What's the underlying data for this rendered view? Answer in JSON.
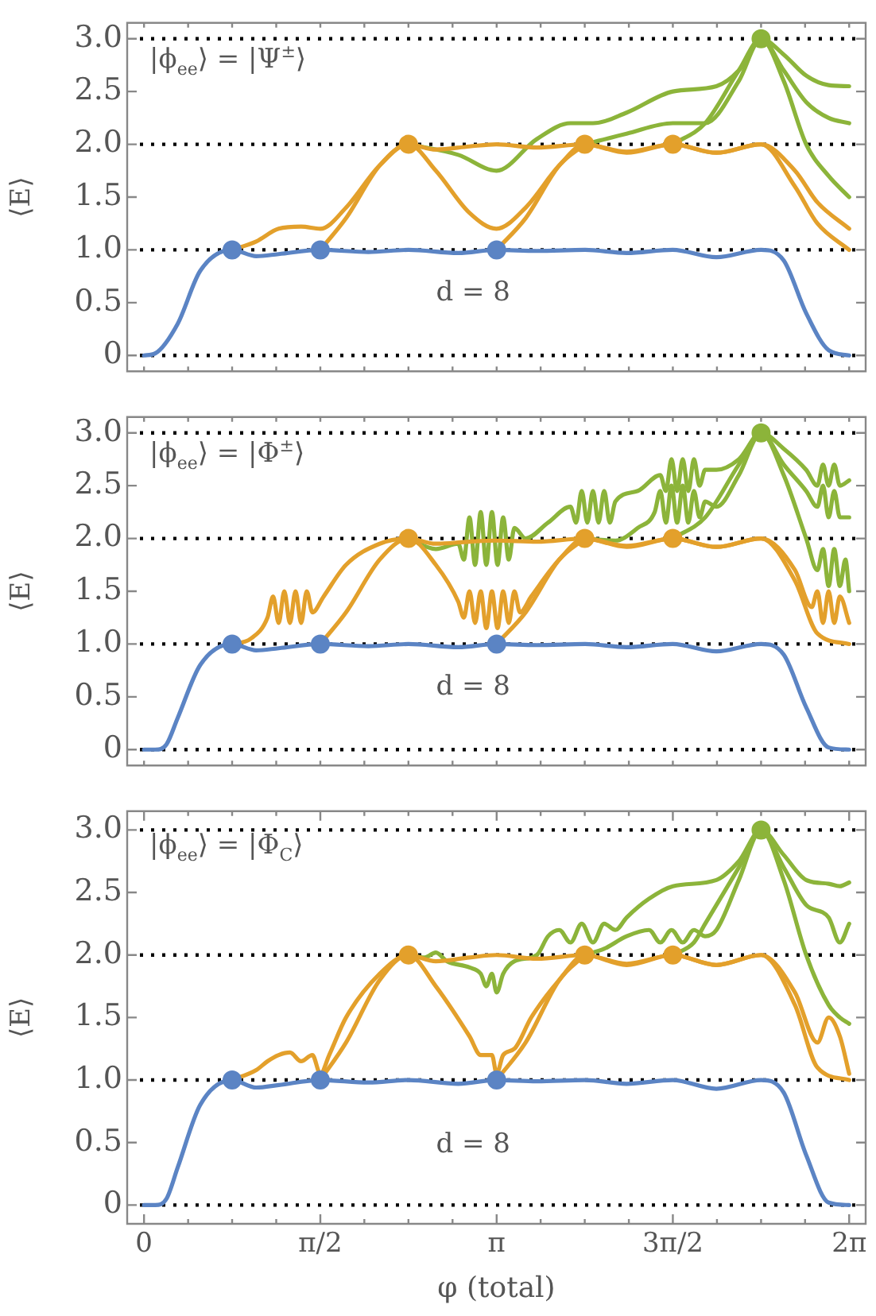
{
  "chart_data": [
    {
      "type": "line",
      "ylabel": "⟨E⟩",
      "annotations": [
        "|ϕ$_{ee}$⟩ = |Ψ$^{±}$⟩",
        "d = 8"
      ],
      "marker": "none",
      "grid": false,
      "legend": false,
      "tick_labels": "y",
      "xlim": [
        -0.15,
        6.43
      ],
      "ylim": [
        -0.15,
        3.15
      ],
      "xticks": [
        {
          "value": 0,
          "label": null
        },
        {
          "value": 0.393,
          "label": null
        },
        {
          "value": 0.785,
          "label": null
        },
        {
          "value": 1.178,
          "label": null
        },
        {
          "value": 1.571,
          "label": null
        },
        {
          "value": 1.963,
          "label": null
        },
        {
          "value": 2.356,
          "label": null
        },
        {
          "value": 2.749,
          "label": null
        },
        {
          "value": 3.142,
          "label": null
        },
        {
          "value": 3.534,
          "label": null
        },
        {
          "value": 3.927,
          "label": null
        },
        {
          "value": 4.32,
          "label": null
        },
        {
          "value": 4.712,
          "label": null
        },
        {
          "value": 5.105,
          "label": null
        },
        {
          "value": 5.498,
          "label": null
        },
        {
          "value": 5.89,
          "label": null
        },
        {
          "value": 6.283,
          "label": null
        }
      ],
      "yticks": [
        0,
        0.5,
        {
          "value": 1,
          "label": "1.0"
        },
        1.5,
        {
          "value": 2,
          "label": "2.0"
        },
        2.5,
        {
          "value": 3,
          "label": "3.0"
        }
      ],
      "ref_lines": [
        {
          "axis": "y",
          "value": 0,
          "color": "#000000",
          "line_style": "dotted"
        },
        {
          "axis": "y",
          "value": 1,
          "color": "#000000",
          "line_style": "dotted"
        },
        {
          "axis": "y",
          "value": 2,
          "color": "#000000",
          "line_style": "dotted"
        },
        {
          "axis": "y",
          "value": 3,
          "color": "#000000",
          "line_style": "dotted"
        }
      ],
      "series": [
        {
          "color": "#5b84c4",
          "x": [
            0,
            0.1,
            0.3,
            0.5,
            0.785,
            1.0,
            1.2,
            1.571,
            2.0,
            2.356,
            2.8,
            3.14,
            3.5,
            3.93,
            4.3,
            4.71,
            5.1,
            5.498,
            5.7,
            5.9,
            6.1,
            6.283
          ],
          "values": [
            0,
            0.02,
            0.3,
            0.8,
            1,
            0.94,
            0.96,
            1,
            0.98,
            1,
            0.97,
            1,
            0.99,
            1,
            0.97,
            1,
            0.93,
            1,
            0.9,
            0.4,
            0.05,
            0
          ]
        },
        {
          "color": "#e3a02b",
          "x": [
            0.785,
            1.0,
            1.2,
            1.4,
            1.571,
            1.8,
            2.1,
            2.356,
            2.6,
            2.9,
            3.14,
            3.5,
            3.927,
            4.3,
            4.712,
            5.1,
            5.498,
            5.8,
            6.0,
            6.283
          ],
          "values": [
            1,
            1.08,
            1.2,
            1.22,
            1.2,
            1.4,
            1.8,
            2,
            1.95,
            1.98,
            2,
            1.97,
            2,
            1.93,
            2,
            1.92,
            2,
            1.75,
            1.45,
            1.2
          ]
        },
        {
          "color": "#e3a02b",
          "x": [
            1.571,
            1.8,
            2.1,
            2.356,
            2.6,
            2.9,
            3.14,
            3.4,
            3.7,
            3.927,
            4.3,
            4.712,
            5.1,
            5.498,
            5.8,
            6.0,
            6.283
          ],
          "values": [
            1,
            1.3,
            1.8,
            2,
            1.75,
            1.35,
            1.2,
            1.4,
            1.8,
            2,
            1.92,
            2,
            1.92,
            2,
            1.6,
            1.25,
            1.0
          ]
        },
        {
          "color": "#e3a02b",
          "x": [
            3.14,
            3.4,
            3.7,
            3.927
          ],
          "values": [
            1,
            1.3,
            1.8,
            2
          ]
        },
        {
          "color": "#8cb43a",
          "x": [
            2.356,
            2.8,
            3.14,
            3.5,
            3.8,
            4.0,
            4.3,
            4.712,
            5.1,
            5.3,
            5.498,
            5.7,
            5.9,
            6.1,
            6.283
          ],
          "values": [
            2,
            1.9,
            1.75,
            2.05,
            2.2,
            2.2,
            2.3,
            2.5,
            2.55,
            2.7,
            3,
            2.85,
            2.65,
            2.56,
            2.55
          ]
        },
        {
          "color": "#8cb43a",
          "x": [
            3.927,
            4.3,
            4.712,
            5.0,
            5.3,
            5.498,
            5.7,
            5.9,
            6.1,
            6.283
          ],
          "values": [
            2,
            2.1,
            2.2,
            2.2,
            2.6,
            3,
            2.7,
            2.4,
            2.25,
            2.2
          ]
        },
        {
          "color": "#8cb43a",
          "x": [
            4.712,
            5.0,
            5.3,
            5.498,
            5.7,
            5.9,
            6.1,
            6.283
          ],
          "values": [
            2,
            2.2,
            2.7,
            3,
            2.6,
            2.0,
            1.7,
            1.5
          ]
        },
        {
          "type": "scatter",
          "marker": "circle",
          "color": "#5b84c4",
          "x": [
            0.785,
            1.571,
            3.142
          ],
          "values": [
            1,
            1,
            1
          ]
        },
        {
          "type": "scatter",
          "marker": "circle",
          "color": "#e3a02b",
          "x": [
            2.356,
            3.927,
            4.712
          ],
          "values": [
            2,
            2,
            2
          ]
        },
        {
          "type": "scatter",
          "marker": "circle",
          "color": "#8cb43a",
          "x": [
            5.498
          ],
          "values": [
            3
          ]
        }
      ]
    },
    {
      "type": "line",
      "ylabel": "⟨E⟩",
      "annotations": [
        "|ϕ$_{ee}$⟩ = |Φ$^{±}$⟩",
        "d = 8"
      ],
      "marker": "none",
      "grid": false,
      "legend": false,
      "tick_labels": "y",
      "xlim": [
        -0.15,
        6.43
      ],
      "ylim": [
        -0.15,
        3.15
      ],
      "xticks": [
        {
          "value": 0,
          "label": null
        },
        {
          "value": 0.393,
          "label": null
        },
        {
          "value": 0.785,
          "label": null
        },
        {
          "value": 1.178,
          "label": null
        },
        {
          "value": 1.571,
          "label": null
        },
        {
          "value": 1.963,
          "label": null
        },
        {
          "value": 2.356,
          "label": null
        },
        {
          "value": 2.749,
          "label": null
        },
        {
          "value": 3.142,
          "label": null
        },
        {
          "value": 3.534,
          "label": null
        },
        {
          "value": 3.927,
          "label": null
        },
        {
          "value": 4.32,
          "label": null
        },
        {
          "value": 4.712,
          "label": null
        },
        {
          "value": 5.105,
          "label": null
        },
        {
          "value": 5.498,
          "label": null
        },
        {
          "value": 5.89,
          "label": null
        },
        {
          "value": 6.283,
          "label": null
        }
      ],
      "yticks": [
        0,
        0.5,
        {
          "value": 1,
          "label": "1.0"
        },
        1.5,
        {
          "value": 2,
          "label": "2.0"
        },
        2.5,
        {
          "value": 3,
          "label": "3.0"
        }
      ],
      "ref_lines": [
        {
          "axis": "y",
          "value": 0,
          "color": "#000000",
          "line_style": "dotted"
        },
        {
          "axis": "y",
          "value": 1,
          "color": "#000000",
          "line_style": "dotted"
        },
        {
          "axis": "y",
          "value": 2,
          "color": "#000000",
          "line_style": "dotted"
        },
        {
          "axis": "y",
          "value": 3,
          "color": "#000000",
          "line_style": "dotted"
        }
      ],
      "series": [
        {
          "color": "#5b84c4",
          "x": [
            0,
            0.1,
            0.2,
            0.3,
            0.5,
            0.785,
            1.0,
            1.2,
            1.571,
            2.0,
            2.356,
            2.8,
            3.14,
            3.5,
            3.93,
            4.3,
            4.71,
            5.1,
            5.498,
            5.7,
            5.9,
            6.1,
            6.283
          ],
          "values": [
            0,
            0,
            0.05,
            0.3,
            0.8,
            1,
            0.94,
            0.96,
            1,
            0.98,
            1,
            0.97,
            1,
            0.99,
            1,
            0.97,
            1,
            0.93,
            1,
            0.9,
            0.4,
            0.02,
            0
          ]
        },
        {
          "color": "#e3a02b",
          "x": [
            0.785,
            0.95,
            1.1,
            1.15,
            1.2,
            1.25,
            1.3,
            1.35,
            1.4,
            1.45,
            1.5,
            1.6,
            1.8,
            2.1,
            2.356,
            2.6,
            2.9,
            3.14,
            3.5,
            3.927,
            4.3,
            4.712,
            5.1,
            5.498,
            5.8,
            5.95,
            6.0,
            6.05,
            6.1,
            6.15,
            6.2,
            6.283
          ],
          "values": [
            1,
            1.05,
            1.25,
            1.45,
            1.2,
            1.5,
            1.2,
            1.5,
            1.2,
            1.5,
            1.3,
            1.45,
            1.75,
            1.95,
            2,
            1.95,
            1.97,
            1.98,
            1.97,
            2,
            1.93,
            2,
            1.92,
            2,
            1.7,
            1.35,
            1.5,
            1.2,
            1.5,
            1.2,
            1.45,
            1.2
          ]
        },
        {
          "color": "#e3a02b",
          "x": [
            1.571,
            1.8,
            2.1,
            2.356,
            2.6,
            2.8,
            2.85,
            2.9,
            2.95,
            3.0,
            3.05,
            3.1,
            3.15,
            3.2,
            3.25,
            3.3,
            3.35,
            3.45,
            3.7,
            3.927,
            4.3,
            4.712,
            5.1,
            5.498,
            5.8,
            6.0,
            6.283
          ],
          "values": [
            1,
            1.3,
            1.8,
            2,
            1.75,
            1.4,
            1.25,
            1.5,
            1.2,
            1.5,
            1.15,
            1.5,
            1.15,
            1.5,
            1.2,
            1.5,
            1.3,
            1.45,
            1.8,
            2,
            1.92,
            2,
            1.92,
            2,
            1.6,
            1.1,
            1.0
          ]
        },
        {
          "color": "#e3a02b",
          "x": [
            3.14,
            3.4,
            3.7,
            3.927
          ],
          "values": [
            1,
            1.3,
            1.8,
            2
          ]
        },
        {
          "color": "#8cb43a",
          "x": [
            2.356,
            2.6,
            2.8,
            2.85,
            2.9,
            2.95,
            3.0,
            3.05,
            3.1,
            3.15,
            3.2,
            3.25,
            3.3,
            3.4,
            3.6,
            3.8,
            3.85,
            3.9,
            3.95,
            4.0,
            4.05,
            4.1,
            4.15,
            4.2,
            4.4,
            4.6,
            4.65,
            4.7,
            4.75,
            4.8,
            4.85,
            4.9,
            4.95,
            5.0,
            5.1,
            5.3,
            5.498,
            5.7,
            5.9,
            6.0,
            6.05,
            6.1,
            6.15,
            6.2,
            6.283
          ],
          "values": [
            2,
            1.9,
            1.95,
            1.8,
            2.2,
            1.75,
            2.25,
            1.75,
            2.25,
            1.75,
            2.2,
            1.8,
            2.1,
            2.0,
            2.15,
            2.3,
            2.15,
            2.45,
            2.15,
            2.45,
            2.15,
            2.45,
            2.15,
            2.35,
            2.45,
            2.6,
            2.45,
            2.75,
            2.45,
            2.75,
            2.45,
            2.75,
            2.5,
            2.65,
            2.65,
            2.75,
            3,
            2.85,
            2.65,
            2.5,
            2.7,
            2.5,
            2.7,
            2.5,
            2.55
          ]
        },
        {
          "color": "#8cb43a",
          "x": [
            3.927,
            4.2,
            4.4,
            4.55,
            4.6,
            4.65,
            4.7,
            4.75,
            4.8,
            4.85,
            4.9,
            4.95,
            5.0,
            5.1,
            5.3,
            5.498,
            5.7,
            5.9,
            6.0,
            6.05,
            6.1,
            6.15,
            6.2,
            6.283
          ],
          "values": [
            2,
            1.98,
            2.1,
            2.25,
            2.45,
            2.15,
            2.5,
            2.15,
            2.5,
            2.15,
            2.45,
            2.2,
            2.35,
            2.3,
            2.6,
            3,
            2.7,
            2.45,
            2.3,
            2.5,
            2.2,
            2.45,
            2.2,
            2.2
          ]
        },
        {
          "color": "#8cb43a",
          "x": [
            4.712,
            5.0,
            5.3,
            5.498,
            5.7,
            5.9,
            6.0,
            6.05,
            6.1,
            6.15,
            6.2,
            6.25,
            6.283
          ],
          "values": [
            2,
            2.2,
            2.7,
            3,
            2.6,
            2.0,
            1.7,
            1.9,
            1.55,
            1.9,
            1.55,
            1.8,
            1.5
          ]
        },
        {
          "type": "scatter",
          "marker": "circle",
          "color": "#5b84c4",
          "x": [
            0.785,
            1.571,
            3.142
          ],
          "values": [
            1,
            1,
            1
          ]
        },
        {
          "type": "scatter",
          "marker": "circle",
          "color": "#e3a02b",
          "x": [
            2.356,
            3.927,
            4.712
          ],
          "values": [
            2,
            2,
            2
          ]
        },
        {
          "type": "scatter",
          "marker": "circle",
          "color": "#8cb43a",
          "x": [
            5.498
          ],
          "values": [
            3
          ]
        }
      ]
    },
    {
      "type": "line",
      "ylabel": "⟨E⟩",
      "xlabel": "φ (total)",
      "annotations": [
        "|ϕ$_{ee}$⟩ = |Φ$_{C}$⟩",
        "d = 8"
      ],
      "marker": "none",
      "grid": false,
      "legend": false,
      "xlim": [
        -0.15,
        6.43
      ],
      "ylim": [
        -0.15,
        3.15
      ],
      "xticks": [
        {
          "value": 0,
          "label": "0"
        },
        {
          "value": 0.393,
          "label": null
        },
        {
          "value": 0.785,
          "label": null
        },
        {
          "value": 1.178,
          "label": null
        },
        {
          "value": 1.571,
          "label": "π/2"
        },
        {
          "value": 1.963,
          "label": null
        },
        {
          "value": 2.356,
          "label": null
        },
        {
          "value": 2.749,
          "label": null
        },
        {
          "value": 3.142,
          "label": "π"
        },
        {
          "value": 3.534,
          "label": null
        },
        {
          "value": 3.927,
          "label": null
        },
        {
          "value": 4.32,
          "label": null
        },
        {
          "value": 4.712,
          "label": "3π/2"
        },
        {
          "value": 5.105,
          "label": null
        },
        {
          "value": 5.498,
          "label": null
        },
        {
          "value": 5.89,
          "label": null
        },
        {
          "value": 6.283,
          "label": "2π"
        }
      ],
      "yticks": [
        0,
        0.5,
        {
          "value": 1,
          "label": "1.0"
        },
        1.5,
        {
          "value": 2,
          "label": "2.0"
        },
        2.5,
        {
          "value": 3,
          "label": "3.0"
        }
      ],
      "ref_lines": [
        {
          "axis": "y",
          "value": 0,
          "color": "#000000",
          "line_style": "dotted"
        },
        {
          "axis": "y",
          "value": 1,
          "color": "#000000",
          "line_style": "dotted"
        },
        {
          "axis": "y",
          "value": 2,
          "color": "#000000",
          "line_style": "dotted"
        },
        {
          "axis": "y",
          "value": 3,
          "color": "#000000",
          "line_style": "dotted"
        }
      ],
      "series": [
        {
          "color": "#5b84c4",
          "x": [
            0,
            0.1,
            0.2,
            0.3,
            0.5,
            0.785,
            1.0,
            1.2,
            1.571,
            2.0,
            2.356,
            2.8,
            3.14,
            3.5,
            3.93,
            4.3,
            4.71,
            5.1,
            5.498,
            5.7,
            5.9,
            6.1,
            6.283
          ],
          "values": [
            0,
            0,
            0.05,
            0.3,
            0.8,
            1,
            0.94,
            0.96,
            1,
            0.98,
            1,
            0.97,
            1,
            0.99,
            1,
            0.97,
            1,
            0.93,
            1,
            0.9,
            0.4,
            0.02,
            0
          ]
        },
        {
          "color": "#e3a02b",
          "x": [
            0.785,
            1.0,
            1.1,
            1.2,
            1.3,
            1.4,
            1.5,
            1.571,
            1.65,
            1.8,
            2.1,
            2.356,
            2.6,
            2.9,
            3.14,
            3.5,
            3.927,
            4.3,
            4.712,
            5.1,
            5.498,
            5.8,
            6.0,
            6.1,
            6.2,
            6.283
          ],
          "values": [
            1,
            1.08,
            1.15,
            1.2,
            1.22,
            1.15,
            1.2,
            1.05,
            1.2,
            1.5,
            1.85,
            2,
            1.95,
            1.98,
            2,
            1.97,
            2,
            1.93,
            2,
            1.92,
            2,
            1.7,
            1.3,
            1.5,
            1.35,
            1.05
          ]
        },
        {
          "color": "#e3a02b",
          "x": [
            1.571,
            1.8,
            2.1,
            2.356,
            2.6,
            2.9,
            3.0,
            3.1,
            3.142,
            3.2,
            3.3,
            3.45,
            3.7,
            3.927,
            4.3,
            4.712,
            5.1,
            5.498,
            5.8,
            6.0,
            6.283
          ],
          "values": [
            1,
            1.3,
            1.8,
            2,
            1.75,
            1.35,
            1.2,
            1.2,
            1.05,
            1.2,
            1.25,
            1.5,
            1.8,
            2,
            1.92,
            2,
            1.92,
            2,
            1.6,
            1.1,
            1.0
          ]
        },
        {
          "color": "#e3a02b",
          "x": [
            3.14,
            3.4,
            3.7,
            3.927
          ],
          "values": [
            1,
            1.3,
            1.8,
            2
          ]
        },
        {
          "color": "#8cb43a",
          "x": [
            2.356,
            2.5,
            2.6,
            2.7,
            2.9,
            3.0,
            3.05,
            3.1,
            3.142,
            3.2,
            3.3,
            3.5,
            3.6,
            3.7,
            3.8,
            3.9,
            4.0,
            4.1,
            4.2,
            4.3,
            4.5,
            4.712,
            5.1,
            5.3,
            5.498,
            5.7,
            5.9,
            6.1,
            6.2,
            6.283
          ],
          "values": [
            2,
            1.98,
            2.02,
            1.95,
            1.9,
            1.85,
            1.75,
            1.85,
            1.7,
            1.85,
            1.95,
            2.0,
            2.15,
            2.2,
            2.1,
            2.25,
            2.1,
            2.25,
            2.2,
            2.3,
            2.45,
            2.55,
            2.6,
            2.75,
            3,
            2.8,
            2.6,
            2.57,
            2.55,
            2.58
          ]
        },
        {
          "color": "#8cb43a",
          "x": [
            3.927,
            4.1,
            4.3,
            4.5,
            4.6,
            4.7,
            4.8,
            4.9,
            5.0,
            5.1,
            5.3,
            5.498,
            5.7,
            5.9,
            6.1,
            6.2,
            6.283
          ],
          "values": [
            2,
            2.05,
            2.15,
            2.2,
            2.1,
            2.2,
            2.1,
            2.2,
            2.15,
            2.2,
            2.6,
            3,
            2.7,
            2.4,
            2.3,
            2.1,
            2.25
          ]
        },
        {
          "color": "#8cb43a",
          "x": [
            4.712,
            4.9,
            5.0,
            5.3,
            5.498,
            5.7,
            5.9,
            6.1,
            6.2,
            6.283
          ],
          "values": [
            2,
            2.1,
            2.25,
            2.7,
            3,
            2.6,
            2.0,
            1.6,
            1.5,
            1.45
          ]
        },
        {
          "type": "scatter",
          "marker": "circle",
          "color": "#5b84c4",
          "x": [
            0.785,
            1.571,
            3.142
          ],
          "values": [
            1,
            1,
            1
          ]
        },
        {
          "type": "scatter",
          "marker": "circle",
          "color": "#e3a02b",
          "x": [
            2.356,
            3.927,
            4.712
          ],
          "values": [
            2,
            2,
            2
          ]
        },
        {
          "type": "scatter",
          "marker": "circle",
          "color": "#8cb43a",
          "x": [
            5.498
          ],
          "values": [
            3
          ]
        }
      ]
    }
  ]
}
